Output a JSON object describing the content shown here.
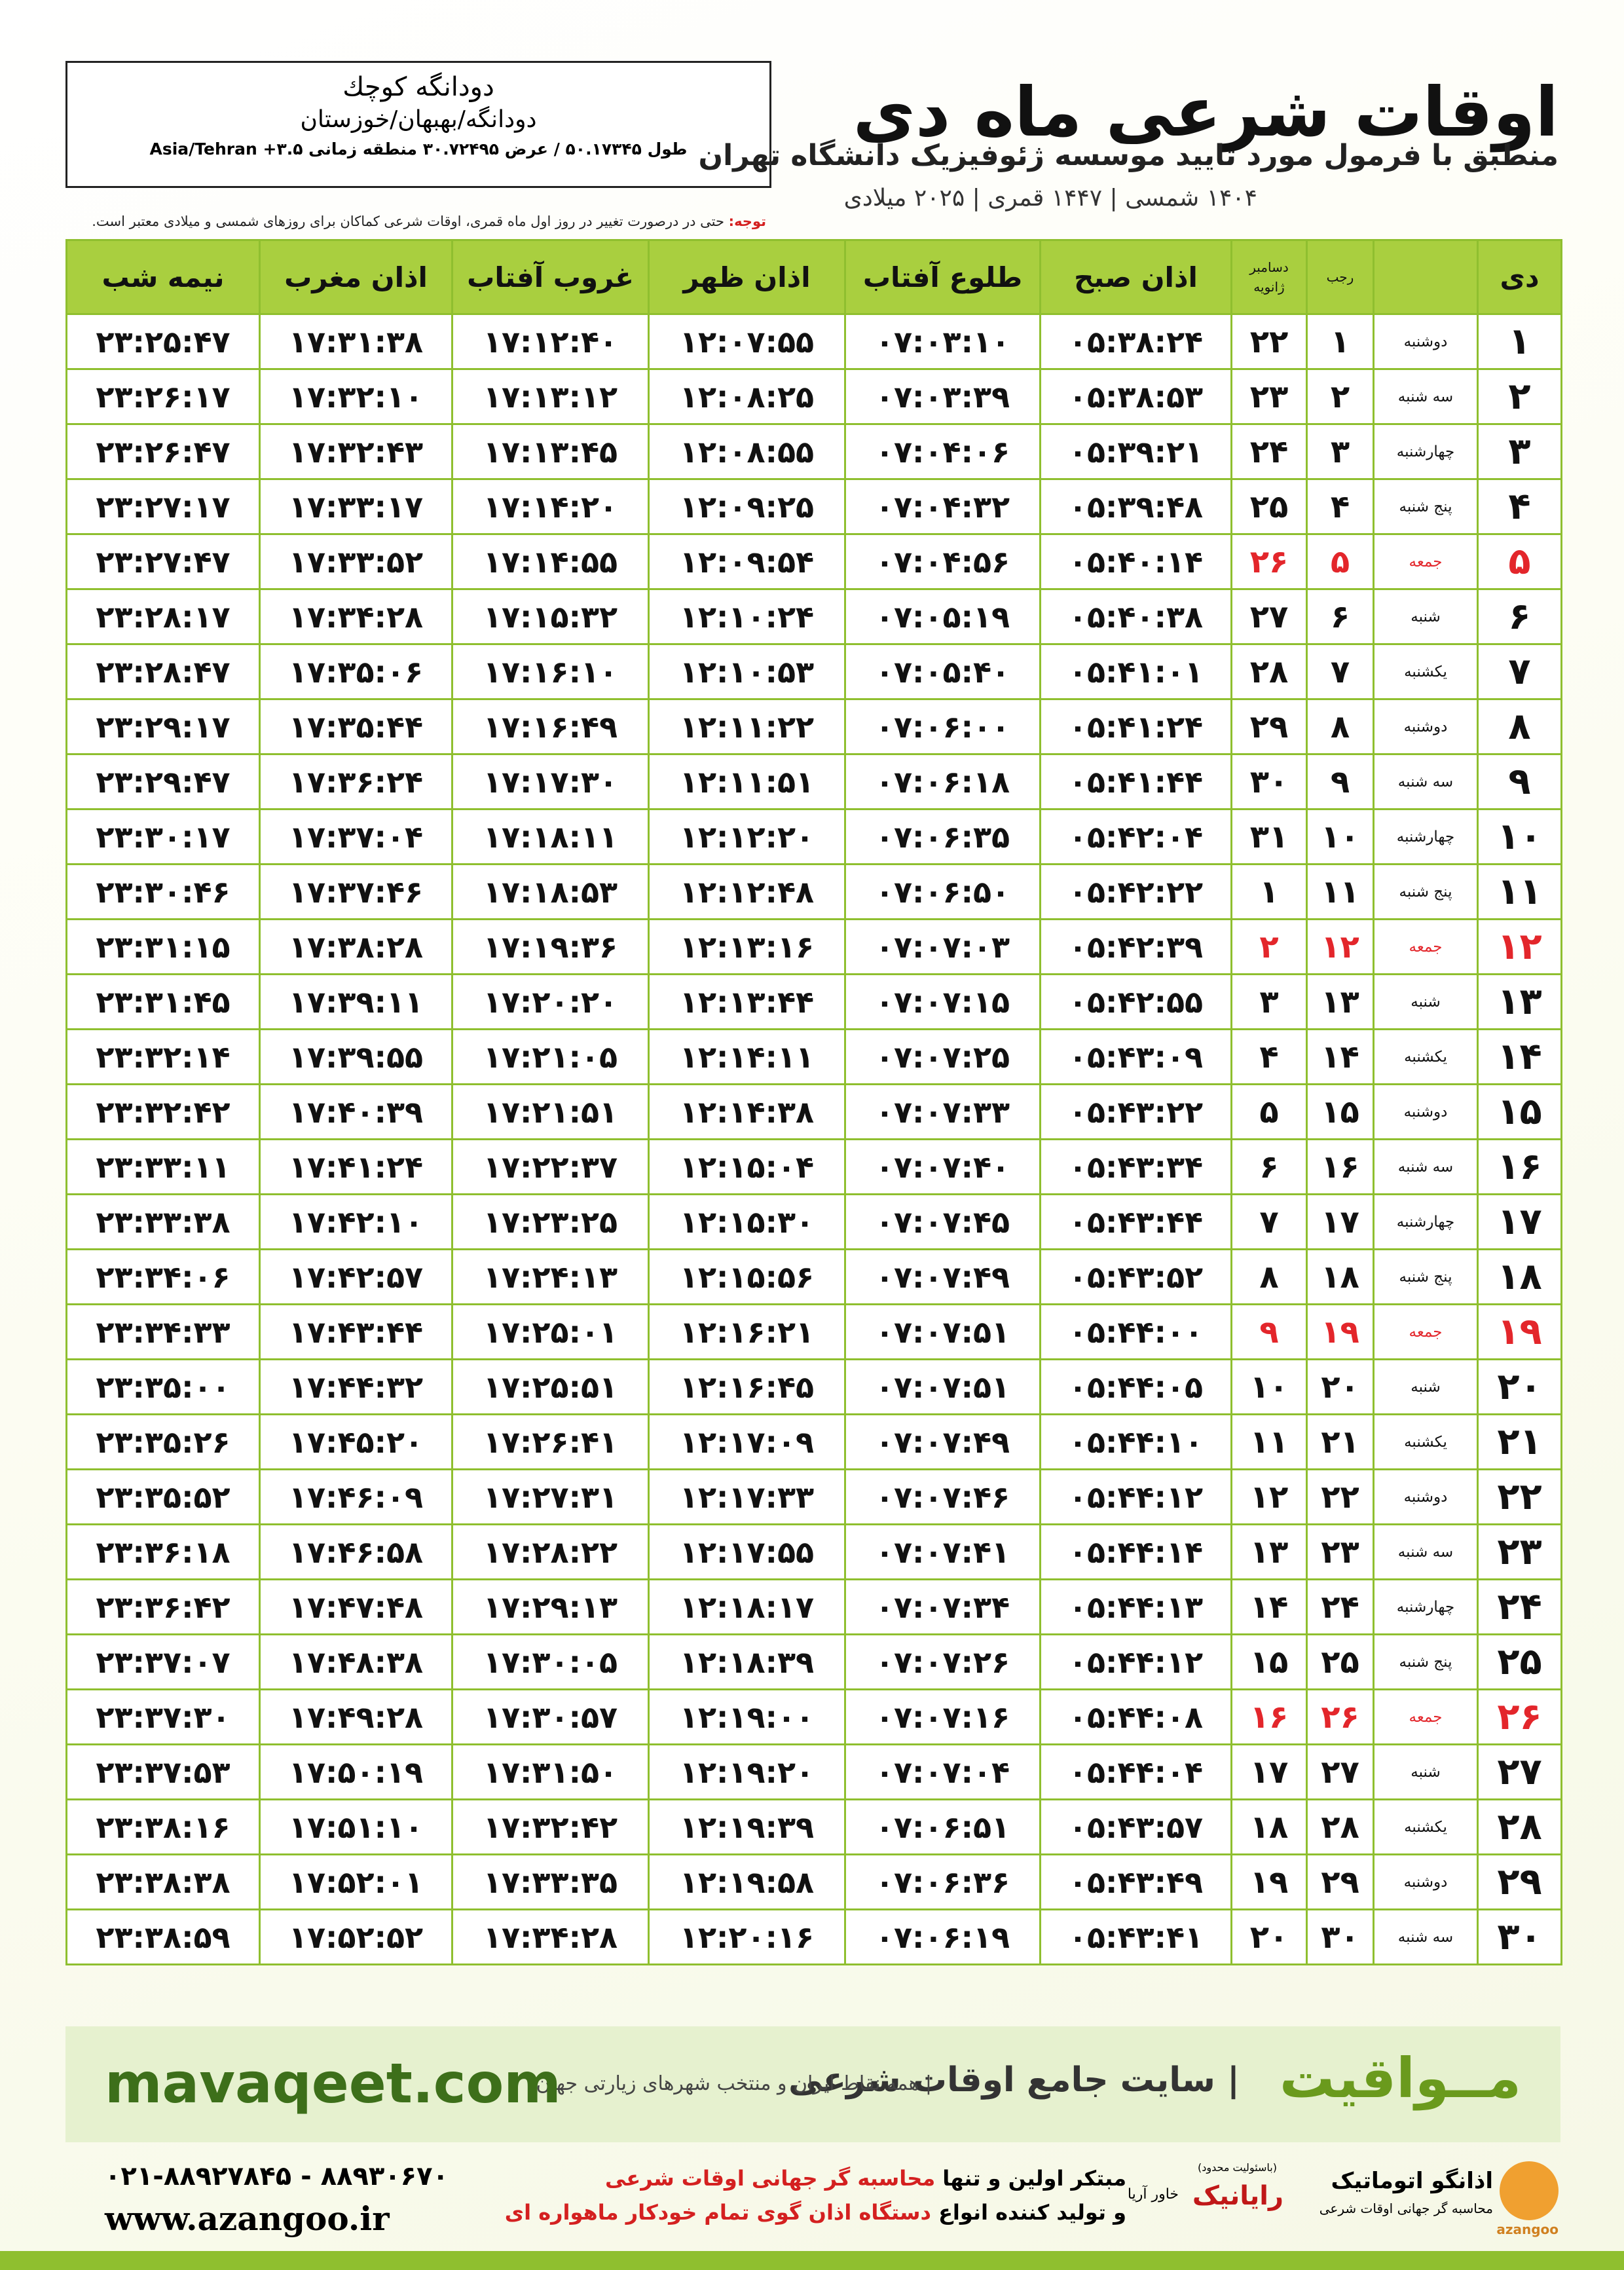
{
  "header": {
    "title": "اوقات شرعی ماه دی",
    "subtitle": "منطبق با فرمول مورد تایید موسسه ژئوفیزیک دانشگاه تهران",
    "date_line": "۱۴۰۴ شمسی | ۱۴۴۷ قمری | ۲۰۲۵ میلادی"
  },
  "location": {
    "name": "دودانگه کوچك",
    "region": "دودانگه/بهبهان/خوزستان",
    "coordinates": "طول ۵۰.۱۷۳۴۵ / عرض ۳۰.۷۲۴۹۵ منطقه زمانی ۳.۵+ Asia/Tehran"
  },
  "note": {
    "label": "توجه:",
    "text": "حتی در درصورت تغییر در روز اول ماه قمری، اوقات شرعی کماکان برای روزهای شمسی و میلادی معتبر است."
  },
  "table": {
    "highlight_color": "#e3262b",
    "headers": [
      "دی",
      "",
      "رجب",
      [
        "دسامبر",
        "ژانویه"
      ],
      "اذان صبح",
      "طلوع آفتاب",
      "اذان ظهر",
      "غروب آفتاب",
      "اذان مغرب",
      "نیمه شب"
    ],
    "rows": [
      {
        "cells": [
          "۱",
          "دوشنبه",
          "۱",
          "۲۲",
          "۰۵:۳۸:۲۴",
          "۰۷:۰۳:۱۰",
          "۱۲:۰۷:۵۵",
          "۱۷:۱۲:۴۰",
          "۱۷:۳۱:۳۸",
          "۲۳:۲۵:۴۷"
        ]
      },
      {
        "cells": [
          "۲",
          "سه شنبه",
          "۲",
          "۲۳",
          "۰۵:۳۸:۵۳",
          "۰۷:۰۳:۳۹",
          "۱۲:۰۸:۲۵",
          "۱۷:۱۳:۱۲",
          "۱۷:۳۲:۱۰",
          "۲۳:۲۶:۱۷"
        ]
      },
      {
        "cells": [
          "۳",
          "چهارشنبه",
          "۳",
          "۲۴",
          "۰۵:۳۹:۲۱",
          "۰۷:۰۴:۰۶",
          "۱۲:۰۸:۵۵",
          "۱۷:۱۳:۴۵",
          "۱۷:۳۲:۴۳",
          "۲۳:۲۶:۴۷"
        ]
      },
      {
        "cells": [
          "۴",
          "پنج شنبه",
          "۴",
          "۲۵",
          "۰۵:۳۹:۴۸",
          "۰۷:۰۴:۳۲",
          "۱۲:۰۹:۲۵",
          "۱۷:۱۴:۲۰",
          "۱۷:۳۳:۱۷",
          "۲۳:۲۷:۱۷"
        ]
      },
      {
        "cells": [
          "۵",
          "جمعه",
          "۵",
          "۲۶",
          "۰۵:۴۰:۱۴",
          "۰۷:۰۴:۵۶",
          "۱۲:۰۹:۵۴",
          "۱۷:۱۴:۵۵",
          "۱۷:۳۳:۵۲",
          "۲۳:۲۷:۴۷"
        ],
        "highlight": true
      },
      {
        "cells": [
          "۶",
          "شنبه",
          "۶",
          "۲۷",
          "۰۵:۴۰:۳۸",
          "۰۷:۰۵:۱۹",
          "۱۲:۱۰:۲۴",
          "۱۷:۱۵:۳۲",
          "۱۷:۳۴:۲۸",
          "۲۳:۲۸:۱۷"
        ]
      },
      {
        "cells": [
          "۷",
          "یکشنبه",
          "۷",
          "۲۸",
          "۰۵:۴۱:۰۱",
          "۰۷:۰۵:۴۰",
          "۱۲:۱۰:۵۳",
          "۱۷:۱۶:۱۰",
          "۱۷:۳۵:۰۶",
          "۲۳:۲۸:۴۷"
        ]
      },
      {
        "cells": [
          "۸",
          "دوشنبه",
          "۸",
          "۲۹",
          "۰۵:۴۱:۲۴",
          "۰۷:۰۶:۰۰",
          "۱۲:۱۱:۲۲",
          "۱۷:۱۶:۴۹",
          "۱۷:۳۵:۴۴",
          "۲۳:۲۹:۱۷"
        ]
      },
      {
        "cells": [
          "۹",
          "سه شنبه",
          "۹",
          "۳۰",
          "۰۵:۴۱:۴۴",
          "۰۷:۰۶:۱۸",
          "۱۲:۱۱:۵۱",
          "۱۷:۱۷:۳۰",
          "۱۷:۳۶:۲۴",
          "۲۳:۲۹:۴۷"
        ]
      },
      {
        "cells": [
          "۱۰",
          "چهارشنبه",
          "۱۰",
          "۳۱",
          "۰۵:۴۲:۰۴",
          "۰۷:۰۶:۳۵",
          "۱۲:۱۲:۲۰",
          "۱۷:۱۸:۱۱",
          "۱۷:۳۷:۰۴",
          "۲۳:۳۰:۱۷"
        ]
      },
      {
        "cells": [
          "۱۱",
          "پنج شنبه",
          "۱۱",
          "۱",
          "۰۵:۴۲:۲۲",
          "۰۷:۰۶:۵۰",
          "۱۲:۱۲:۴۸",
          "۱۷:۱۸:۵۳",
          "۱۷:۳۷:۴۶",
          "۲۳:۳۰:۴۶"
        ]
      },
      {
        "cells": [
          "۱۲",
          "جمعه",
          "۱۲",
          "۲",
          "۰۵:۴۲:۳۹",
          "۰۷:۰۷:۰۳",
          "۱۲:۱۳:۱۶",
          "۱۷:۱۹:۳۶",
          "۱۷:۳۸:۲۸",
          "۲۳:۳۱:۱۵"
        ],
        "highlight": true
      },
      {
        "cells": [
          "۱۳",
          "شنبه",
          "۱۳",
          "۳",
          "۰۵:۴۲:۵۵",
          "۰۷:۰۷:۱۵",
          "۱۲:۱۳:۴۴",
          "۱۷:۲۰:۲۰",
          "۱۷:۳۹:۱۱",
          "۲۳:۳۱:۴۵"
        ]
      },
      {
        "cells": [
          "۱۴",
          "یکشنبه",
          "۱۴",
          "۴",
          "۰۵:۴۳:۰۹",
          "۰۷:۰۷:۲۵",
          "۱۲:۱۴:۱۱",
          "۱۷:۲۱:۰۵",
          "۱۷:۳۹:۵۵",
          "۲۳:۳۲:۱۴"
        ]
      },
      {
        "cells": [
          "۱۵",
          "دوشنبه",
          "۱۵",
          "۵",
          "۰۵:۴۳:۲۲",
          "۰۷:۰۷:۳۳",
          "۱۲:۱۴:۳۸",
          "۱۷:۲۱:۵۱",
          "۱۷:۴۰:۳۹",
          "۲۳:۳۲:۴۲"
        ]
      },
      {
        "cells": [
          "۱۶",
          "سه شنبه",
          "۱۶",
          "۶",
          "۰۵:۴۳:۳۴",
          "۰۷:۰۷:۴۰",
          "۱۲:۱۵:۰۴",
          "۱۷:۲۲:۳۷",
          "۱۷:۴۱:۲۴",
          "۲۳:۳۳:۱۱"
        ]
      },
      {
        "cells": [
          "۱۷",
          "چهارشنبه",
          "۱۷",
          "۷",
          "۰۵:۴۳:۴۴",
          "۰۷:۰۷:۴۵",
          "۱۲:۱۵:۳۰",
          "۱۷:۲۳:۲۵",
          "۱۷:۴۲:۱۰",
          "۲۳:۳۳:۳۸"
        ]
      },
      {
        "cells": [
          "۱۸",
          "پنج شنبه",
          "۱۸",
          "۸",
          "۰۵:۴۳:۵۲",
          "۰۷:۰۷:۴۹",
          "۱۲:۱۵:۵۶",
          "۱۷:۲۴:۱۳",
          "۱۷:۴۲:۵۷",
          "۲۳:۳۴:۰۶"
        ]
      },
      {
        "cells": [
          "۱۹",
          "جمعه",
          "۱۹",
          "۹",
          "۰۵:۴۴:۰۰",
          "۰۷:۰۷:۵۱",
          "۱۲:۱۶:۲۱",
          "۱۷:۲۵:۰۱",
          "۱۷:۴۳:۴۴",
          "۲۳:۳۴:۳۳"
        ],
        "highlight": true
      },
      {
        "cells": [
          "۲۰",
          "شنبه",
          "۲۰",
          "۱۰",
          "۰۵:۴۴:۰۵",
          "۰۷:۰۷:۵۱",
          "۱۲:۱۶:۴۵",
          "۱۷:۲۵:۵۱",
          "۱۷:۴۴:۳۲",
          "۲۳:۳۵:۰۰"
        ]
      },
      {
        "cells": [
          "۲۱",
          "یکشنبه",
          "۲۱",
          "۱۱",
          "۰۵:۴۴:۱۰",
          "۰۷:۰۷:۴۹",
          "۱۲:۱۷:۰۹",
          "۱۷:۲۶:۴۱",
          "۱۷:۴۵:۲۰",
          "۲۳:۳۵:۲۶"
        ]
      },
      {
        "cells": [
          "۲۲",
          "دوشنبه",
          "۲۲",
          "۱۲",
          "۰۵:۴۴:۱۲",
          "۰۷:۰۷:۴۶",
          "۱۲:۱۷:۳۳",
          "۱۷:۲۷:۳۱",
          "۱۷:۴۶:۰۹",
          "۲۳:۳۵:۵۲"
        ]
      },
      {
        "cells": [
          "۲۳",
          "سه شنبه",
          "۲۳",
          "۱۳",
          "۰۵:۴۴:۱۴",
          "۰۷:۰۷:۴۱",
          "۱۲:۱۷:۵۵",
          "۱۷:۲۸:۲۲",
          "۱۷:۴۶:۵۸",
          "۲۳:۳۶:۱۸"
        ]
      },
      {
        "cells": [
          "۲۴",
          "چهارشنبه",
          "۲۴",
          "۱۴",
          "۰۵:۴۴:۱۳",
          "۰۷:۰۷:۳۴",
          "۱۲:۱۸:۱۷",
          "۱۷:۲۹:۱۳",
          "۱۷:۴۷:۴۸",
          "۲۳:۳۶:۴۲"
        ]
      },
      {
        "cells": [
          "۲۵",
          "پنج شنبه",
          "۲۵",
          "۱۵",
          "۰۵:۴۴:۱۲",
          "۰۷:۰۷:۲۶",
          "۱۲:۱۸:۳۹",
          "۱۷:۳۰:۰۵",
          "۱۷:۴۸:۳۸",
          "۲۳:۳۷:۰۷"
        ]
      },
      {
        "cells": [
          "۲۶",
          "جمعه",
          "۲۶",
          "۱۶",
          "۰۵:۴۴:۰۸",
          "۰۷:۰۷:۱۶",
          "۱۲:۱۹:۰۰",
          "۱۷:۳۰:۵۷",
          "۱۷:۴۹:۲۸",
          "۲۳:۳۷:۳۰"
        ],
        "highlight": true
      },
      {
        "cells": [
          "۲۷",
          "شنبه",
          "۲۷",
          "۱۷",
          "۰۵:۴۴:۰۴",
          "۰۷:۰۷:۰۴",
          "۱۲:۱۹:۲۰",
          "۱۷:۳۱:۵۰",
          "۱۷:۵۰:۱۹",
          "۲۳:۳۷:۵۳"
        ]
      },
      {
        "cells": [
          "۲۸",
          "یکشنبه",
          "۲۸",
          "۱۸",
          "۰۵:۴۳:۵۷",
          "۰۷:۰۶:۵۱",
          "۱۲:۱۹:۳۹",
          "۱۷:۳۲:۴۲",
          "۱۷:۵۱:۱۰",
          "۲۳:۳۸:۱۶"
        ]
      },
      {
        "cells": [
          "۲۹",
          "دوشنبه",
          "۲۹",
          "۱۹",
          "۰۵:۴۳:۴۹",
          "۰۷:۰۶:۳۶",
          "۱۲:۱۹:۵۸",
          "۱۷:۳۳:۳۵",
          "۱۷:۵۲:۰۱",
          "۲۳:۳۸:۳۸"
        ]
      },
      {
        "cells": [
          "۳۰",
          "سه شنبه",
          "۳۰",
          "۲۰",
          "۰۵:۴۳:۴۱",
          "۰۷:۰۶:۱۹",
          "۱۲:۲۰:۱۶",
          "۱۷:۳۴:۲۸",
          "۱۷:۵۲:۵۲",
          "۲۳:۳۸:۵۹"
        ]
      }
    ]
  },
  "footer": {
    "brand": "مــواقیت",
    "site": "| سایت جامع اوقات شرعی",
    "description": "| همه نقاط ایران و منتخب شهرهای زیارتی جهان",
    "url": "mavaqeet.com",
    "phone": "۰۲۱-۸۸۹۲۷۸۴۵ - ۸۸۹۳۰۶۷۰",
    "web": "www.azangoo.ir",
    "blurb_1a": "مبتکر اولین و تنها",
    "blurb_1b": "محاسبه گر جهانی اوقات شرعی",
    "blurb_2a": "و تولید کننده انواع",
    "blurb_2b": "دستگاه اذان گوی تمام خودکار ماهواره ای",
    "logo_1": "رایانیک",
    "logo_1_sub": "خاور آریا",
    "logo_1_note": "(باسئولیت محدود)",
    "logo_2": "اذانگو اتوماتیک",
    "logo_2_sub": "محاسبه گر جهانی اوقات شرعی",
    "logo_2_en": "azangoo"
  }
}
